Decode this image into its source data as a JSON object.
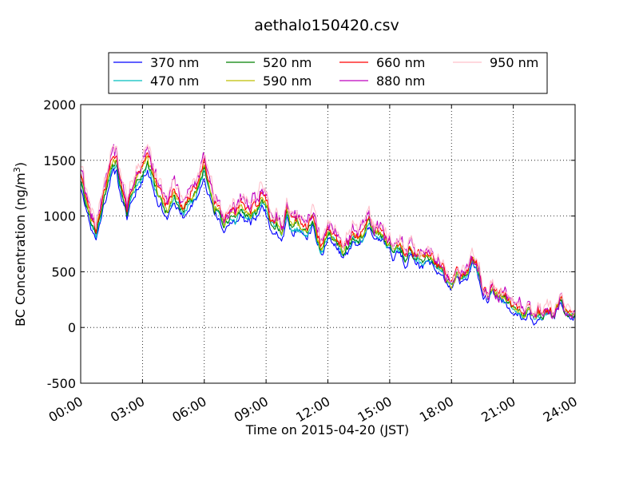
{
  "chart_data": {
    "type": "line",
    "title": "aethalo150420.csv",
    "xlabel": "Time on 2015-04-20 (JST)",
    "ylabel": "BC Concentration (ng/m",
    "ylabel_sup": "3",
    "ylabel_close": ")",
    "xlim": [
      "00:00",
      "24:00"
    ],
    "ylim": [
      -500,
      2000
    ],
    "x_ticks": [
      "00:00",
      "03:00",
      "06:00",
      "09:00",
      "12:00",
      "15:00",
      "18:00",
      "21:00",
      "24:00"
    ],
    "x_tick_hours": [
      0,
      3,
      6,
      9,
      12,
      15,
      18,
      21,
      24
    ],
    "y_ticks": [
      -500,
      0,
      500,
      1000,
      1500,
      2000
    ],
    "grid": true,
    "legend_position": "top",
    "x_unit": "hours since 00:00 (JST)",
    "anchors": {
      "x": [
        0.0,
        0.25,
        0.5,
        0.75,
        1.0,
        1.25,
        1.5,
        1.75,
        2.0,
        2.25,
        2.5,
        2.75,
        3.0,
        3.25,
        3.5,
        3.75,
        4.0,
        4.25,
        4.5,
        4.75,
        5.0,
        5.25,
        5.5,
        5.75,
        6.0,
        6.25,
        6.5,
        6.75,
        7.0,
        7.25,
        7.5,
        7.75,
        8.0,
        8.25,
        8.5,
        8.75,
        9.0,
        9.25,
        9.5,
        9.75,
        10.0,
        10.25,
        10.5,
        10.75,
        11.0,
        11.25,
        11.5,
        11.75,
        12.0,
        12.25,
        12.5,
        12.75,
        13.0,
        13.25,
        13.5,
        13.75,
        14.0,
        14.25,
        14.5,
        14.75,
        15.0,
        15.25,
        15.5,
        15.75,
        16.0,
        16.25,
        16.5,
        16.75,
        17.0,
        17.25,
        17.5,
        17.75,
        18.0,
        18.25,
        18.5,
        18.75,
        19.0,
        19.25,
        19.5,
        19.75,
        20.0,
        20.25,
        20.5,
        20.75,
        21.0,
        21.25,
        21.5,
        21.75,
        22.0,
        22.25,
        22.5,
        22.75,
        23.0,
        23.25,
        23.5,
        23.75,
        24.0
      ],
      "y": [
        1350,
        1150,
        950,
        880,
        1050,
        1250,
        1450,
        1500,
        1200,
        1050,
        1250,
        1350,
        1400,
        1500,
        1350,
        1200,
        1150,
        1050,
        1200,
        1150,
        1050,
        1150,
        1200,
        1300,
        1450,
        1250,
        1100,
        1050,
        950,
        1050,
        1000,
        1100,
        1050,
        1000,
        1050,
        1150,
        1100,
        950,
        950,
        850,
        1050,
        900,
        950,
        900,
        850,
        1000,
        800,
        700,
        900,
        850,
        750,
        700,
        750,
        850,
        780,
        820,
        1000,
        900,
        850,
        800,
        750,
        700,
        720,
        650,
        700,
        650,
        620,
        650,
        600,
        550,
        550,
        450,
        400,
        500,
        450,
        450,
        650,
        550,
        380,
        300,
        350,
        300,
        250,
        250,
        150,
        130,
        100,
        150,
        120,
        130,
        140,
        130,
        140,
        250,
        150,
        100,
        150
      ]
    },
    "series": [
      {
        "name": "370 nm",
        "color": "#0000ff",
        "factor": 0.95,
        "offset": -30,
        "noise": 40,
        "seed": 11
      },
      {
        "name": "470 nm",
        "color": "#00bfbf",
        "factor": 0.97,
        "offset": -10,
        "noise": 40,
        "seed": 23
      },
      {
        "name": "520 nm",
        "color": "#008000",
        "factor": 0.98,
        "offset": -5,
        "noise": 40,
        "seed": 37
      },
      {
        "name": "590 nm",
        "color": "#bfbf00",
        "factor": 1.0,
        "offset": 0,
        "noise": 42,
        "seed": 41
      },
      {
        "name": "660 nm",
        "color": "#ff0000",
        "factor": 1.02,
        "offset": 10,
        "noise": 50,
        "seed": 53
      },
      {
        "name": "880 nm",
        "color": "#bf00bf",
        "factor": 1.04,
        "offset": 20,
        "noise": 80,
        "seed": 67
      },
      {
        "name": "950 nm",
        "color": "#ffc0cb",
        "factor": 1.06,
        "offset": 25,
        "noise": 70,
        "seed": 79
      }
    ]
  }
}
